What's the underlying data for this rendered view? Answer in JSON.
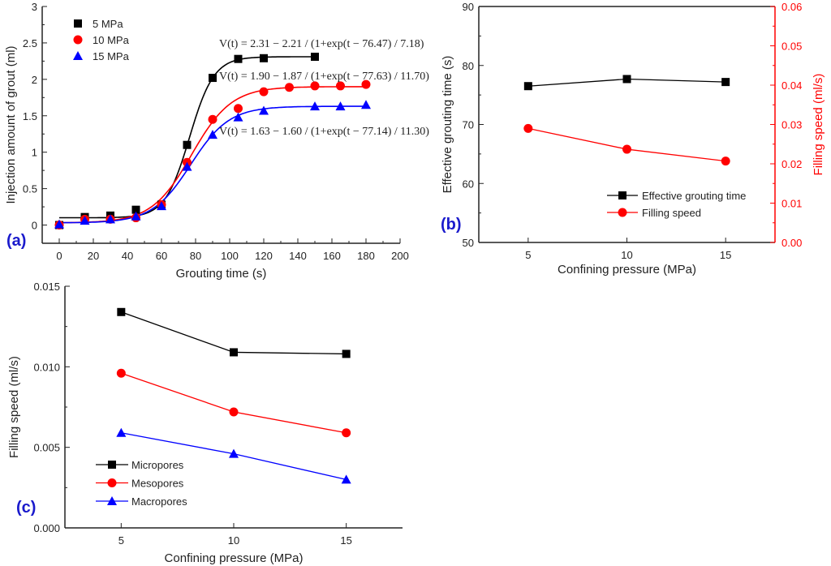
{
  "chart_data": [
    {
      "panel_label": "(a)",
      "type": "scatter",
      "xlabel": "Grouting time (s)",
      "ylabel": "Injection amount of grout (ml)",
      "xlim": [
        -10,
        200
      ],
      "ylim": [
        -0.25,
        3.0
      ],
      "xticks": [
        0,
        20,
        40,
        60,
        80,
        100,
        120,
        140,
        160,
        180,
        200
      ],
      "yticks": [
        0.0,
        0.5,
        1.0,
        1.5,
        2.0,
        2.5,
        3.0
      ],
      "grid": false,
      "legend_position": "top-left",
      "series": [
        {
          "name": "5 MPa",
          "color": "#000000",
          "marker": "square",
          "x": [
            0,
            15,
            30,
            45,
            60,
            75,
            90,
            105,
            120,
            150
          ],
          "y": [
            0.0,
            0.11,
            0.13,
            0.21,
            0.28,
            1.1,
            2.02,
            2.28,
            2.29,
            2.31
          ],
          "fit": {
            "A": 2.31,
            "B": 2.21,
            "t0": 76.47,
            "w": 7.18,
            "tmax": 150
          },
          "equation": "V(t) = 2.31 − 2.21 / (1+exp(t − 76.47) / 7.18)"
        },
        {
          "name": "10 MPa",
          "color": "#ff0000",
          "marker": "circle",
          "x": [
            0,
            15,
            30,
            45,
            60,
            75,
            90,
            105,
            120,
            135,
            150,
            165,
            180
          ],
          "y": [
            0.0,
            0.08,
            0.08,
            0.1,
            0.28,
            0.86,
            1.45,
            1.6,
            1.83,
            1.89,
            1.91,
            1.91,
            1.93
          ],
          "fit": {
            "A": 1.9,
            "B": 1.87,
            "t0": 77.63,
            "w": 11.7,
            "tmax": 180
          },
          "equation": "V(t) = 1.90 − 1.87 / (1+exp(t − 77.63) / 11.70)"
        },
        {
          "name": "15 MPa",
          "color": "#0000ff",
          "marker": "triangle",
          "x": [
            0,
            15,
            30,
            45,
            60,
            75,
            90,
            105,
            120,
            150,
            165,
            180
          ],
          "y": [
            0.01,
            0.06,
            0.08,
            0.12,
            0.26,
            0.8,
            1.24,
            1.48,
            1.57,
            1.63,
            1.63,
            1.65
          ],
          "fit": {
            "A": 1.63,
            "B": 1.6,
            "t0": 77.14,
            "w": 11.3,
            "tmax": 180
          },
          "equation": "V(t) = 1.63 − 1.60 / (1+exp(t − 77.14) / 11.30)"
        }
      ]
    },
    {
      "panel_label": "(b)",
      "type": "line",
      "xlabel": "Confining pressure (MPa)",
      "ylabel": "Effective grouting time (s)",
      "y2label": "Filling speed (ml/s)",
      "xlim": [
        2.5,
        17.5
      ],
      "ylim": [
        50,
        90
      ],
      "y2lim": [
        0,
        0.06
      ],
      "xticks": [
        5,
        10,
        15
      ],
      "yticks": [
        50,
        60,
        70,
        80,
        90
      ],
      "y2ticks": [
        "0.00",
        "0.01",
        "0.02",
        "0.03",
        "0.04",
        "0.05",
        "0.06"
      ],
      "grid": false,
      "legend_position": "bottom-right",
      "series": [
        {
          "name": "Effective grouting time",
          "color": "#000000",
          "marker": "square",
          "axis": "left",
          "x": [
            5,
            10,
            15
          ],
          "y": [
            76.5,
            77.7,
            77.2
          ]
        },
        {
          "name": "Filling speed",
          "color": "#ff0000",
          "marker": "circle",
          "axis": "right",
          "x": [
            5,
            10,
            15
          ],
          "y": [
            0.029,
            0.0237,
            0.0207
          ]
        }
      ]
    },
    {
      "panel_label": "(c)",
      "type": "line",
      "xlabel": "Confining pressure (MPa)",
      "ylabel": "Filling speed (ml/s)",
      "xlim": [
        2.5,
        17.5
      ],
      "ylim": [
        0,
        0.015
      ],
      "xticks": [
        5,
        10,
        15
      ],
      "yticks": [
        "0.000",
        "0.005",
        "0.010",
        "0.015"
      ],
      "grid": false,
      "legend_position": "bottom-left",
      "series": [
        {
          "name": "Micropores",
          "color": "#000000",
          "marker": "square",
          "x": [
            5,
            10,
            15
          ],
          "y": [
            0.0134,
            0.0109,
            0.0108
          ]
        },
        {
          "name": "Mesopores",
          "color": "#ff0000",
          "marker": "circle",
          "x": [
            5,
            10,
            15
          ],
          "y": [
            0.0096,
            0.0072,
            0.0059
          ]
        },
        {
          "name": "Macropores",
          "color": "#0000ff",
          "marker": "triangle",
          "x": [
            5,
            10,
            15
          ],
          "y": [
            0.0059,
            0.0046,
            0.003
          ]
        }
      ]
    }
  ]
}
